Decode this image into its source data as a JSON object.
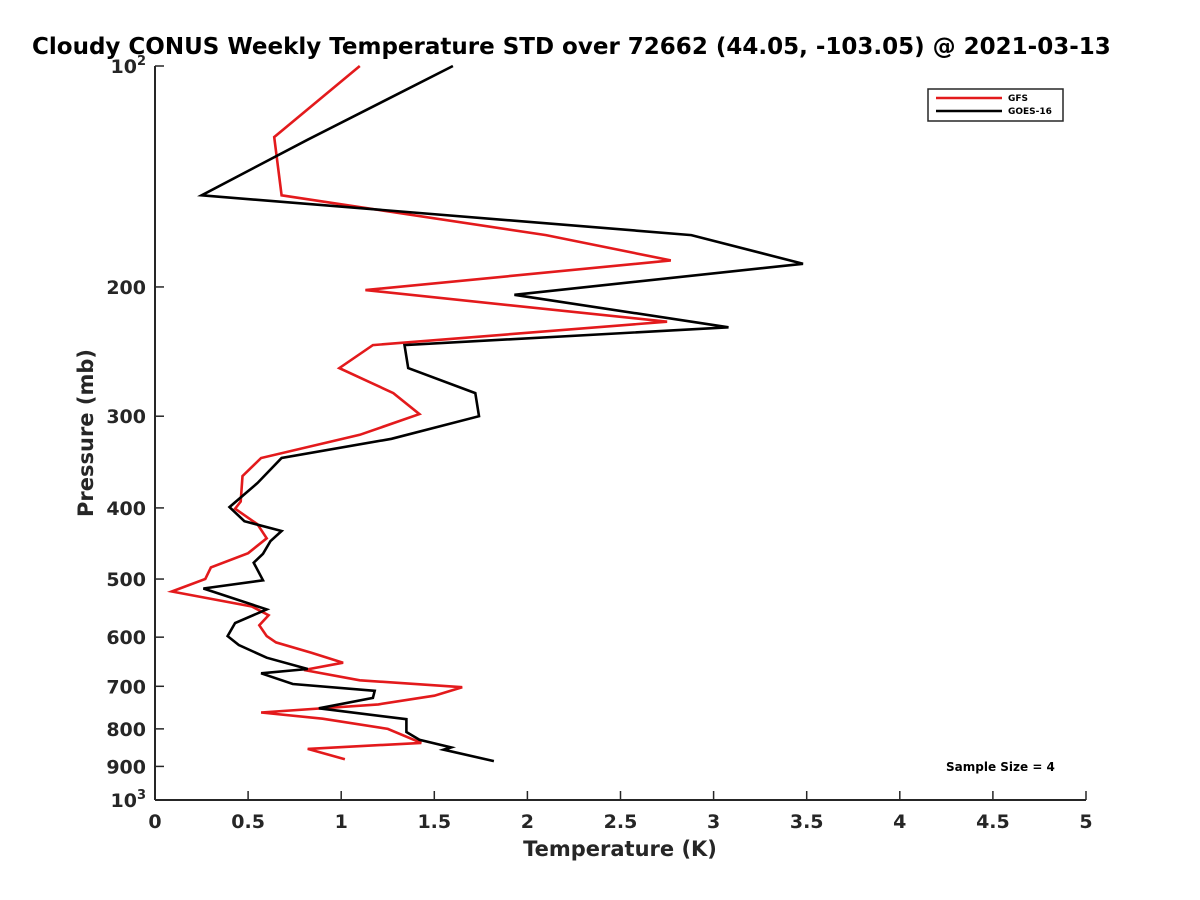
{
  "chart_data": {
    "type": "line",
    "title": "Cloudy CONUS Weekly Temperature STD over 72662 (44.05, -103.05) @ 2021-03-13",
    "xlabel": "Temperature (K)",
    "ylabel": "Pressure (mb)",
    "xlim": [
      0,
      5
    ],
    "ylim": [
      100,
      1000
    ],
    "y_scale": "log",
    "y_reversed": true,
    "x_ticks": [
      0,
      0.5,
      1,
      1.5,
      2,
      2.5,
      3,
      3.5,
      4,
      4.5,
      5
    ],
    "x_tick_labels": [
      "0",
      "0.5",
      "1",
      "1.5",
      "2",
      "2.5",
      "3",
      "3.5",
      "4",
      "4.5",
      "5"
    ],
    "y_ticks": [
      {
        "value": 100,
        "base": "10",
        "exp": "2"
      },
      {
        "value": 200,
        "label": "200"
      },
      {
        "value": 300,
        "label": "300"
      },
      {
        "value": 400,
        "label": "400"
      },
      {
        "value": 500,
        "label": "500"
      },
      {
        "value": 600,
        "label": "600"
      },
      {
        "value": 700,
        "label": "700"
      },
      {
        "value": 800,
        "label": "800"
      },
      {
        "value": 900,
        "label": "900"
      },
      {
        "value": 1000,
        "base": "10",
        "exp": "3"
      }
    ],
    "grid": false,
    "legend_position": "top-right",
    "annotation": "Sample Size = 4",
    "series": [
      {
        "name": "GFS",
        "color": "#e31a1c",
        "points": [
          [
            1.1,
            100
          ],
          [
            0.64,
            125
          ],
          [
            0.68,
            150
          ],
          [
            2.1,
            170
          ],
          [
            2.77,
            184
          ],
          [
            1.13,
            202
          ],
          [
            2.75,
            223
          ],
          [
            1.17,
            240
          ],
          [
            0.99,
            258
          ],
          [
            1.28,
            279
          ],
          [
            1.42,
            298
          ],
          [
            1.1,
            318
          ],
          [
            0.57,
            342
          ],
          [
            0.47,
            362
          ],
          [
            0.46,
            392
          ],
          [
            0.43,
            401
          ],
          [
            0.55,
            421
          ],
          [
            0.6,
            440
          ],
          [
            0.5,
            461
          ],
          [
            0.3,
            482
          ],
          [
            0.27,
            500
          ],
          [
            0.09,
            520
          ],
          [
            0.52,
            545
          ],
          [
            0.61,
            560
          ],
          [
            0.56,
            578
          ],
          [
            0.6,
            598
          ],
          [
            0.65,
            610
          ],
          [
            0.84,
            630
          ],
          [
            1.01,
            650
          ],
          [
            0.8,
            665
          ],
          [
            1.1,
            687
          ],
          [
            1.65,
            702
          ],
          [
            1.5,
            721
          ],
          [
            1.2,
            741
          ],
          [
            0.57,
            760
          ],
          [
            0.9,
            775
          ],
          [
            1.25,
            800
          ],
          [
            1.43,
            836
          ],
          [
            0.82,
            852
          ],
          [
            1.02,
            880
          ]
        ]
      },
      {
        "name": "GOES-16",
        "color": "#000000",
        "points": [
          [
            1.6,
            100
          ],
          [
            0.82,
            126
          ],
          [
            0.25,
            150
          ],
          [
            2.88,
            170
          ],
          [
            3.48,
            186
          ],
          [
            1.93,
            205
          ],
          [
            3.08,
            227
          ],
          [
            1.34,
            240
          ],
          [
            1.36,
            258
          ],
          [
            1.72,
            279
          ],
          [
            1.74,
            300
          ],
          [
            1.27,
            322
          ],
          [
            0.68,
            342
          ],
          [
            0.55,
            370
          ],
          [
            0.4,
            399
          ],
          [
            0.48,
            417
          ],
          [
            0.68,
            430
          ],
          [
            0.62,
            444
          ],
          [
            0.58,
            462
          ],
          [
            0.53,
            475
          ],
          [
            0.58,
            502
          ],
          [
            0.26,
            515
          ],
          [
            0.6,
            550
          ],
          [
            0.43,
            574
          ],
          [
            0.39,
            598
          ],
          [
            0.45,
            615
          ],
          [
            0.6,
            640
          ],
          [
            0.82,
            663
          ],
          [
            0.57,
            672
          ],
          [
            0.74,
            695
          ],
          [
            1.18,
            710
          ],
          [
            1.17,
            726
          ],
          [
            0.88,
            750
          ],
          [
            1.35,
            776
          ],
          [
            1.35,
            808
          ],
          [
            1.42,
            828
          ],
          [
            1.59,
            848
          ],
          [
            1.55,
            854
          ],
          [
            1.82,
            885
          ]
        ]
      }
    ]
  }
}
